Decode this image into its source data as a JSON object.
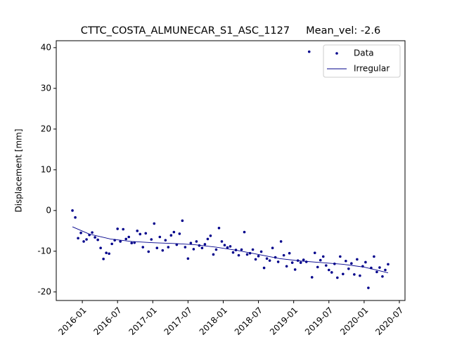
{
  "chart_data": {
    "type": "scatter",
    "title": "CTTC_COSTA_ALMUNECAR_S1_ASC_1127     Mean_vel: -2.6",
    "y_label": "Displacement [mm]",
    "xlim": [
      2015.63,
      2020.58
    ],
    "ylim": [
      -22.1,
      41.7
    ],
    "xticks": [
      {
        "value": 2016.0,
        "label": "2016-01"
      },
      {
        "value": 2016.5,
        "label": "2016-07"
      },
      {
        "value": 2017.0,
        "label": "2017-01"
      },
      {
        "value": 2017.5,
        "label": "2017-07"
      },
      {
        "value": 2018.0,
        "label": "2018-01"
      },
      {
        "value": 2018.5,
        "label": "2018-07"
      },
      {
        "value": 2019.0,
        "label": "2019-01"
      },
      {
        "value": 2019.5,
        "label": "2019-07"
      },
      {
        "value": 2020.0,
        "label": "2020-01"
      },
      {
        "value": 2020.5,
        "label": "2020-07"
      }
    ],
    "yticks": [
      -20,
      -10,
      0,
      10,
      20,
      30,
      40
    ],
    "grid": false,
    "legend": "upper right",
    "series": [
      {
        "name": "Data",
        "type": "scatter",
        "color": "#00008b",
        "x": [
          2015.86,
          2015.9,
          2015.94,
          2015.98,
          2016.02,
          2016.06,
          2016.1,
          2016.14,
          2016.18,
          2016.22,
          2016.26,
          2016.3,
          2016.34,
          2016.38,
          2016.42,
          2016.46,
          2016.5,
          2016.54,
          2016.58,
          2016.62,
          2016.66,
          2016.7,
          2016.74,
          2016.78,
          2016.82,
          2016.86,
          2016.9,
          2016.94,
          2016.98,
          2017.02,
          2017.06,
          2017.1,
          2017.14,
          2017.18,
          2017.22,
          2017.26,
          2017.3,
          2017.34,
          2017.38,
          2017.42,
          2017.46,
          2017.5,
          2017.54,
          2017.58,
          2017.62,
          2017.66,
          2017.7,
          2017.74,
          2017.78,
          2017.82,
          2017.86,
          2017.9,
          2017.94,
          2017.98,
          2018.02,
          2018.06,
          2018.1,
          2018.14,
          2018.18,
          2018.22,
          2018.26,
          2018.3,
          2018.34,
          2018.38,
          2018.42,
          2018.46,
          2018.5,
          2018.54,
          2018.58,
          2018.62,
          2018.66,
          2018.7,
          2018.74,
          2018.78,
          2018.82,
          2018.86,
          2018.9,
          2018.94,
          2018.98,
          2019.02,
          2019.06,
          2019.1,
          2019.14,
          2019.18,
          2019.22,
          2019.26,
          2019.3,
          2019.34,
          2019.38,
          2019.42,
          2019.46,
          2019.5,
          2019.54,
          2019.58,
          2019.62,
          2019.66,
          2019.7,
          2019.74,
          2019.78,
          2019.82,
          2019.86,
          2019.9,
          2019.94,
          2019.98,
          2020.02,
          2020.06,
          2020.1,
          2020.14,
          2020.18,
          2020.22,
          2020.26,
          2020.3,
          2020.34
        ],
        "values": [
          0,
          -1.7,
          -6.8,
          -5.5,
          -7.6,
          -7.1,
          -6.0,
          -5.4,
          -6.6,
          -7.2,
          -9.2,
          -11.9,
          -10.4,
          -10.6,
          -8.2,
          -7.3,
          -4.5,
          -7.6,
          -4.6,
          -7.0,
          -6.5,
          -8.0,
          -7.9,
          -5.0,
          -5.8,
          -9.0,
          -5.6,
          -10.1,
          -7.1,
          -3.2,
          -9.2,
          -6.5,
          -9.8,
          -7.3,
          -9.0,
          -6.1,
          -5.3,
          -8.4,
          -5.7,
          -2.5,
          -9.0,
          -11.8,
          -8.0,
          -9.5,
          -7.6,
          -8.6,
          -9.2,
          -8.3,
          -7.0,
          -6.2,
          -10.8,
          -9.6,
          -4.3,
          -7.6,
          -8.5,
          -9.1,
          -8.8,
          -10.3,
          -9.7,
          -11.0,
          -9.6,
          -5.3,
          -10.8,
          -10.5,
          -9.6,
          -12.0,
          -11.2,
          -10.1,
          -14.1,
          -11.8,
          -12.3,
          -9.2,
          -11.5,
          -12.6,
          -7.6,
          -11.0,
          -13.7,
          -10.5,
          -12.8,
          -14.5,
          -12.3,
          -12.8,
          -12.1,
          -12.6,
          39,
          -16.4,
          -10.4,
          -13.9,
          -12.2,
          -11.3,
          -13.5,
          -14.6,
          -15.2,
          -13.1,
          -16.5,
          -11.3,
          -15.6,
          -12.4,
          -14.3,
          -13.0,
          -15.7,
          -12.0,
          -16.0,
          -13.7,
          -12.7,
          -19.0,
          -14.1,
          -11.3,
          -15.1,
          -14.0,
          -16.2,
          -14.6,
          -13.2
        ]
      },
      {
        "name": "Irregular",
        "type": "line",
        "color": "#00008b",
        "x": [
          2015.86,
          2016.1,
          2016.4,
          2016.7,
          2017.0,
          2017.3,
          2017.6,
          2017.9,
          2018.2,
          2018.5,
          2018.8,
          2019.1,
          2019.4,
          2019.7,
          2020.0,
          2020.34
        ],
        "values": [
          -4,
          -5.8,
          -7,
          -7.6,
          -7.9,
          -8.1,
          -8.4,
          -9,
          -9.8,
          -10.8,
          -11.8,
          -12.4,
          -12.8,
          -13.2,
          -13.9,
          -15.3
        ]
      }
    ]
  }
}
